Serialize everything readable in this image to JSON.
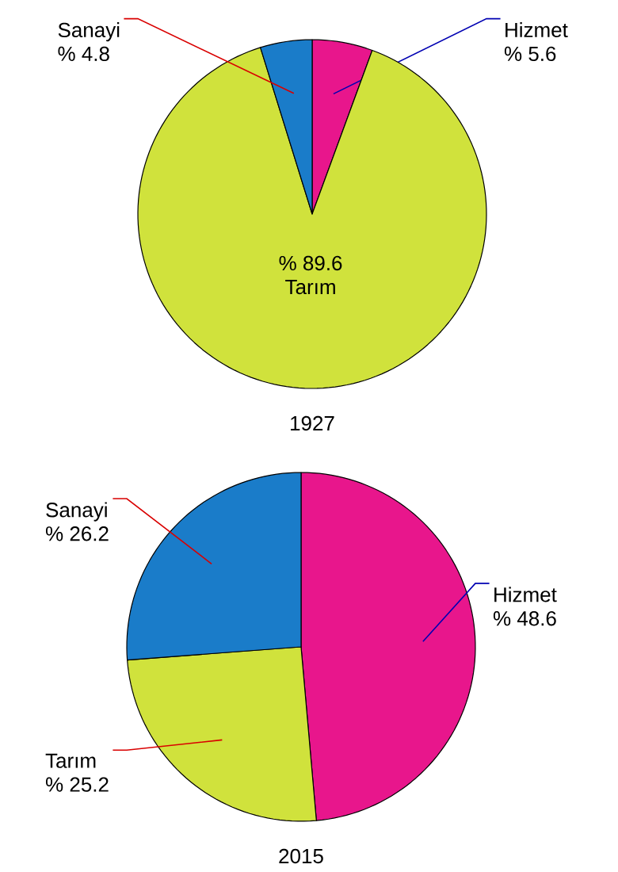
{
  "chart_data": [
    {
      "type": "pie",
      "title": "1927",
      "categories": [
        "Hizmet",
        "Tarım",
        "Sanayi"
      ],
      "values": [
        5.6,
        89.6,
        4.8
      ],
      "value_labels": [
        "% 5.6",
        "% 89.6",
        "% 4.8"
      ],
      "colors": [
        "#e8168c",
        "#d0e23c",
        "#1a7cc9"
      ]
    },
    {
      "type": "pie",
      "title": "2015",
      "categories": [
        "Hizmet",
        "Tarım",
        "Sanayi"
      ],
      "values": [
        48.6,
        25.2,
        26.2
      ],
      "value_labels": [
        "% 48.6",
        "% 25.2",
        "% 26.2"
      ],
      "colors": [
        "#e8168c",
        "#d0e23c",
        "#1a7cc9"
      ]
    }
  ]
}
